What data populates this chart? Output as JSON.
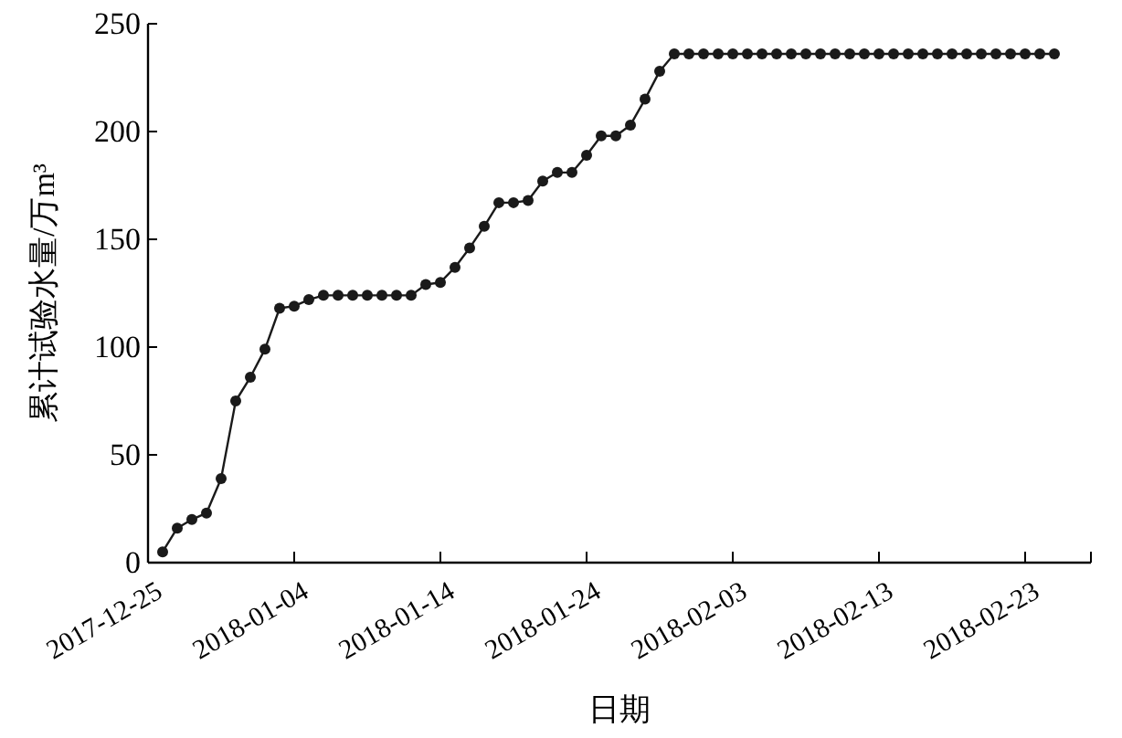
{
  "chart_data": {
    "type": "line",
    "xlabel": "日期",
    "ylabel": "累计试验水量/万m³",
    "x": [
      "2017-12-26",
      "2017-12-27",
      "2017-12-28",
      "2017-12-29",
      "2017-12-30",
      "2017-12-31",
      "2018-01-01",
      "2018-01-02",
      "2018-01-03",
      "2018-01-04",
      "2018-01-05",
      "2018-01-06",
      "2018-01-07",
      "2018-01-08",
      "2018-01-09",
      "2018-01-10",
      "2018-01-11",
      "2018-01-12",
      "2018-01-13",
      "2018-01-14",
      "2018-01-15",
      "2018-01-16",
      "2018-01-17",
      "2018-01-18",
      "2018-01-19",
      "2018-01-20",
      "2018-01-21",
      "2018-01-22",
      "2018-01-23",
      "2018-01-24",
      "2018-01-25",
      "2018-01-26",
      "2018-01-27",
      "2018-01-28",
      "2018-01-29",
      "2018-01-30",
      "2018-01-31",
      "2018-02-01",
      "2018-02-02",
      "2018-02-03",
      "2018-02-04",
      "2018-02-05",
      "2018-02-06",
      "2018-02-07",
      "2018-02-08",
      "2018-02-09",
      "2018-02-10",
      "2018-02-11",
      "2018-02-12",
      "2018-02-13",
      "2018-02-14",
      "2018-02-15",
      "2018-02-16",
      "2018-02-17",
      "2018-02-18",
      "2018-02-19",
      "2018-02-20",
      "2018-02-21",
      "2018-02-22",
      "2018-02-23",
      "2018-02-24",
      "2018-02-25"
    ],
    "series": [
      {
        "color": "#1a1a1a",
        "values": [
          5,
          16,
          20,
          23,
          39,
          75,
          86,
          99,
          118,
          119,
          122,
          124,
          124,
          124,
          124,
          124,
          124,
          124,
          129,
          130,
          137,
          146,
          156,
          167,
          167,
          168,
          177,
          181,
          181,
          189,
          198,
          198,
          203,
          215,
          228,
          236,
          236,
          236,
          236,
          236,
          236,
          236,
          236,
          236,
          236,
          236,
          236,
          236,
          236,
          236,
          236,
          236,
          236,
          236,
          236,
          236,
          236,
          236,
          236,
          236,
          236,
          236
        ]
      }
    ],
    "xlim": [
      "2017-12-25",
      "2018-02-27T12:00"
    ],
    "xticks": [
      "2017-12-25",
      "2018-01-04",
      "2018-01-14",
      "2018-01-24",
      "2018-02-03",
      "2018-02-13",
      "2018-02-23"
    ],
    "ylim": [
      0,
      250
    ],
    "yticks": [
      0,
      50,
      100,
      150,
      200,
      250
    ],
    "marker": "circle",
    "line_style": "solid"
  }
}
